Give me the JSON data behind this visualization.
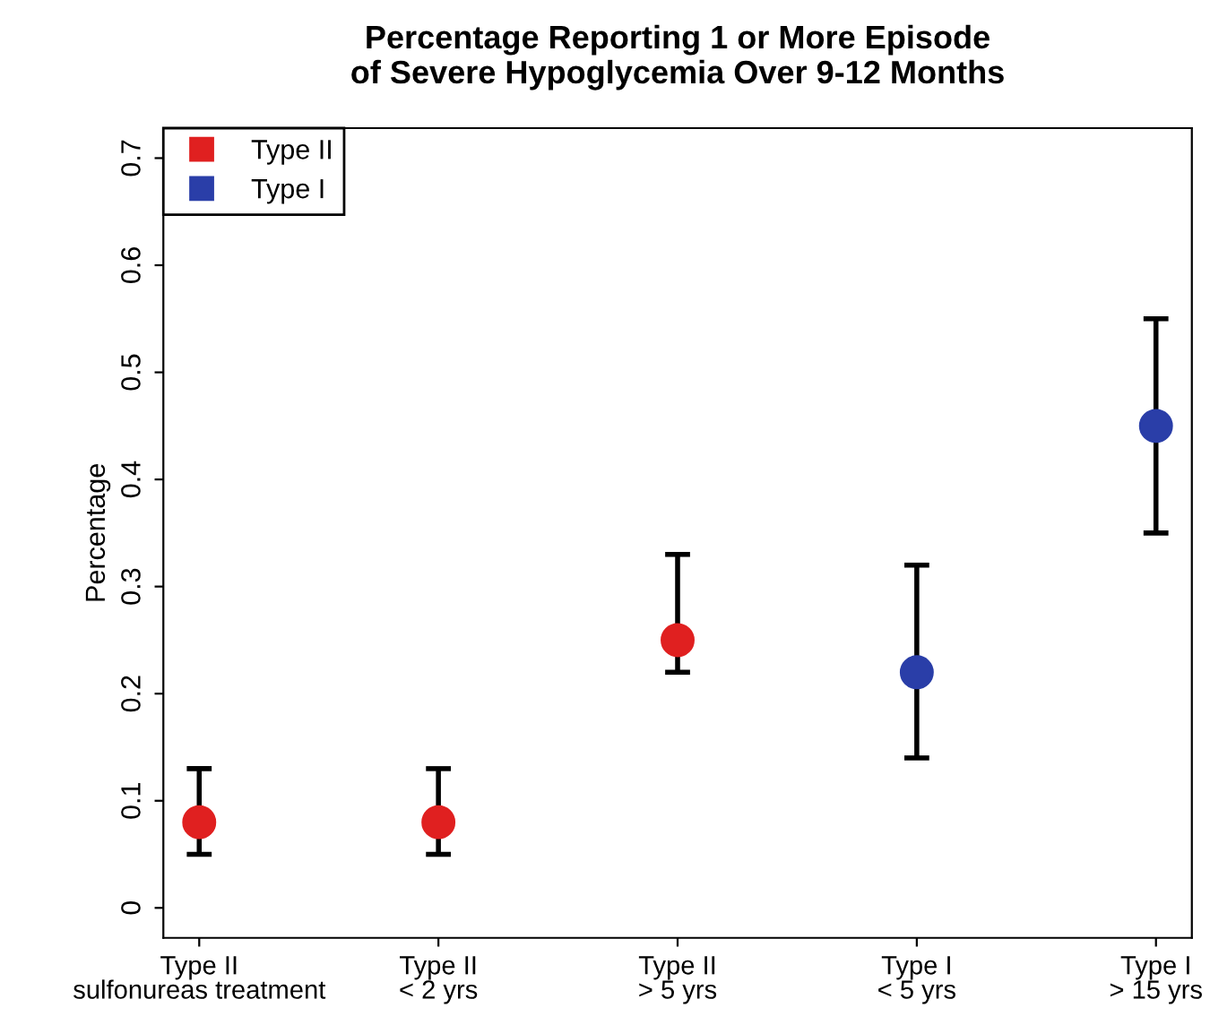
{
  "chart_data": {
    "type": "scatter",
    "title": "Percentage Reporting 1 or More Episode\nof Severe Hypoglycemia Over 9-12 Months",
    "ylabel": "Percentage",
    "categories": [
      "Type II\nsulfonureas treatment",
      "Type II\n< 2 yrs",
      "Type II\n> 5 yrs",
      "Type I\n< 5 yrs",
      "Type I\n> 15 yrs"
    ],
    "series": [
      {
        "name": "Type II",
        "color": "#e02020",
        "values": [
          0.08,
          0.08,
          0.25,
          null,
          null
        ],
        "errors": [
          [
            0.05,
            0.13
          ],
          [
            0.05,
            0.13
          ],
          [
            0.22,
            0.33
          ],
          null,
          null
        ]
      },
      {
        "name": "Type I",
        "color": "#2a3ea8",
        "values": [
          null,
          null,
          null,
          0.22,
          0.45
        ],
        "errors": [
          null,
          null,
          null,
          [
            0.14,
            0.32
          ],
          [
            0.35,
            0.55
          ]
        ]
      }
    ],
    "ylim": [
      -0.028,
      0.728
    ],
    "yticks": [
      0,
      0.1,
      0.2,
      0.3,
      0.4,
      0.5,
      0.6,
      0.7
    ],
    "marker": "circle",
    "legend": "top left",
    "grid": false
  }
}
